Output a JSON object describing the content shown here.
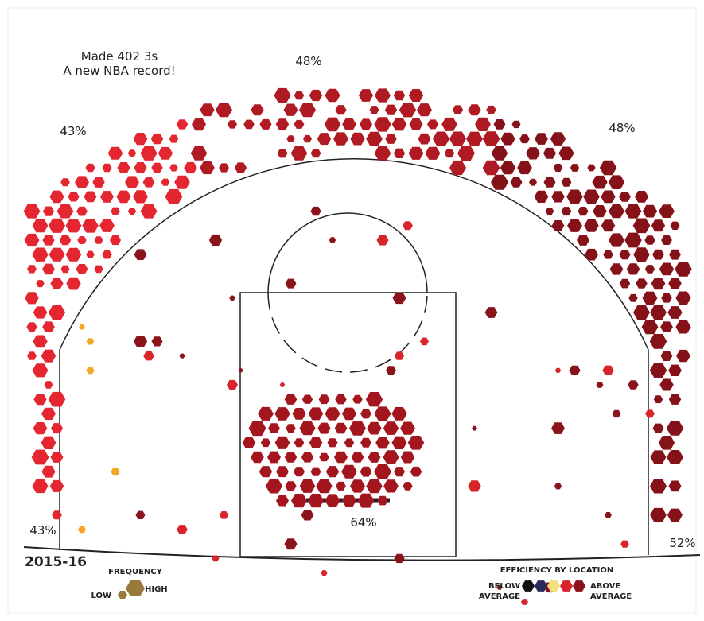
{
  "title": "Made 402 3s",
  "subtitle": "A new NBA record!",
  "zones": [
    {
      "label": "43%"
    },
    {
      "label": "48%"
    },
    {
      "label": "48%"
    },
    {
      "label": "43%"
    },
    {
      "label": "52%"
    },
    {
      "label": "64%"
    }
  ],
  "season": "2015-16",
  "frequency_legend": {
    "title": "FREQUENCY",
    "low": "LOW",
    "high": "HIGH"
  },
  "efficiency_legend": {
    "title": "EFFICIENCY BY LOCATION",
    "below": "BELOW AVERAGE",
    "above": "ABOVE AVERAGE",
    "colors": [
      "#111111",
      "#2a2a5a",
      "#f2e07a",
      "#d8252b",
      "#8a141c"
    ]
  }
}
